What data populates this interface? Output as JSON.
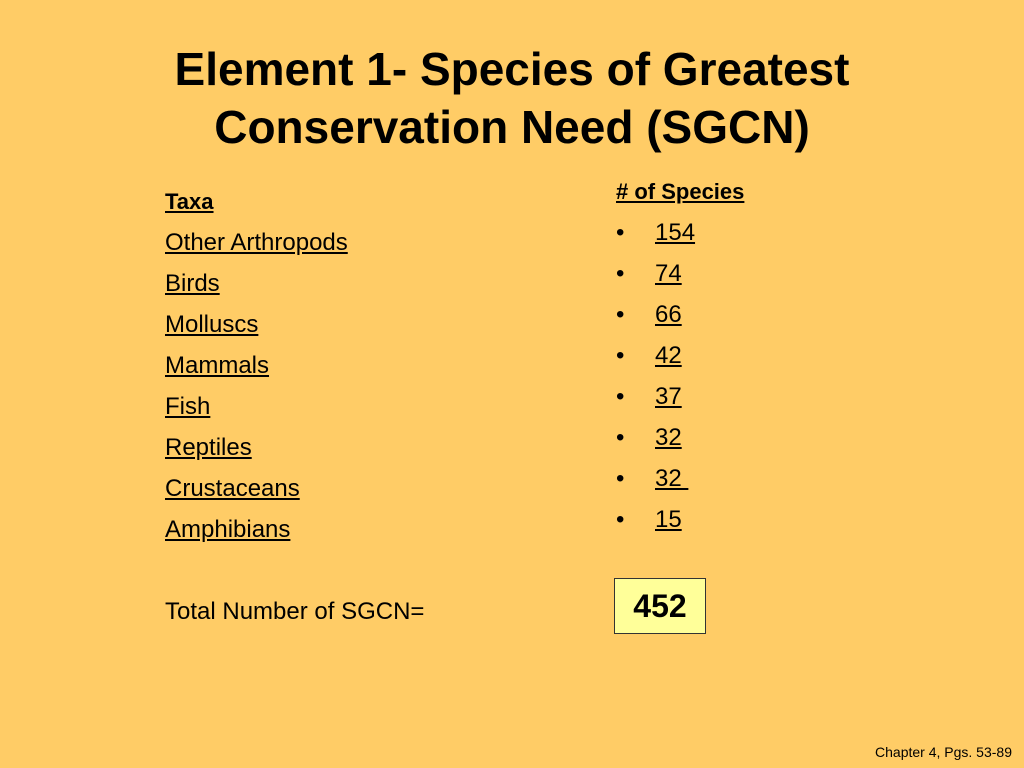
{
  "title": {
    "line1": "Element 1- Species of Greatest",
    "line2": "Conservation Need (SGCN)"
  },
  "left_column": {
    "heading": "Taxa",
    "items": [
      "Other Arthropods",
      "Birds",
      "Molluscs",
      "Mammals",
      "Fish",
      "Reptiles",
      "Crustaceans",
      "Amphibians"
    ],
    "total_label": "Total Number of SGCN="
  },
  "right_column": {
    "heading": "# of Species",
    "bullet_glyph": "•",
    "values": [
      "154",
      "74",
      "66",
      "42",
      "37",
      "32",
      "32 ",
      "15"
    ],
    "total_value": "452"
  },
  "footer": "Chapter 4, Pgs. 53-89",
  "colors": {
    "background": "#FFCC66",
    "total_box": "#FFFF99"
  }
}
